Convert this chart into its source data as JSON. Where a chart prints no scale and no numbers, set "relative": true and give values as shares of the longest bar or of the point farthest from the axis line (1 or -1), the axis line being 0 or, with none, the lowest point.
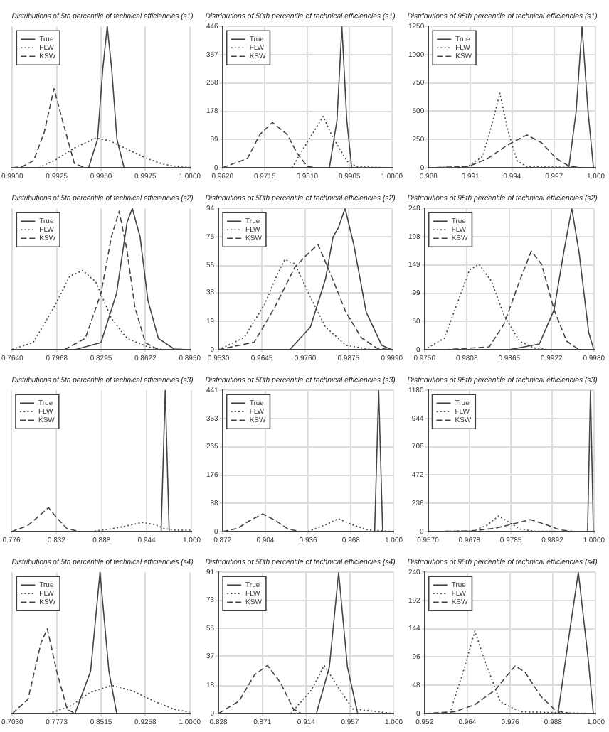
{
  "chart_data": [
    {
      "type": "line",
      "title": "Distributions of 5th percentile of technical efficiencies (s1)",
      "relative": true,
      "tick_labels": "x",
      "xlim": [
        0.99,
        1.0
      ],
      "xticks": [
        {
          "value": 0.99,
          "label": "0.9900"
        },
        {
          "value": 0.9925,
          "label": "0.9925"
        },
        {
          "value": 0.995,
          "label": "0.9950"
        },
        {
          "value": 0.9975,
          "label": "0.9975"
        },
        {
          "value": 1.0,
          "label": "1.0000"
        }
      ],
      "grid": true,
      "legend": "top left",
      "marker": "none",
      "series": [
        {
          "name": "True",
          "color": "#444444",
          "line_style": "solid",
          "x": [
            0.9943,
            0.9948,
            0.9951,
            0.99535,
            0.9956,
            0.9959,
            0.9963
          ],
          "values": [
            0,
            0.2,
            0.7,
            1,
            0.7,
            0.2,
            0
          ]
        },
        {
          "name": "FLW",
          "color": "#444444",
          "line_style": "dotted",
          "x": [
            0.9915,
            0.9925,
            0.9935,
            0.9947,
            0.9955,
            0.9965,
            0.9975,
            0.9985,
            0.9995,
            1.0
          ],
          "values": [
            0,
            0.06,
            0.14,
            0.21,
            0.19,
            0.13,
            0.07,
            0.025,
            0.005,
            0.003
          ]
        },
        {
          "name": "KSW",
          "color": "#444444",
          "line_style": "dashed",
          "x": [
            0.99,
            0.9906,
            0.9912,
            0.9918,
            0.99235,
            0.9929,
            0.9935,
            0.9941
          ],
          "values": [
            0,
            0.01,
            0.05,
            0.25,
            0.56,
            0.3,
            0.03,
            0
          ]
        }
      ]
    },
    {
      "type": "line",
      "title": "Distributions of 50th percentile of technical efficiencies (s1)",
      "xlim": [
        0.962,
        1.0
      ],
      "xticks": [
        {
          "value": 0.962,
          "label": "0.9620"
        },
        {
          "value": 0.9715,
          "label": "0.9715"
        },
        {
          "value": 0.981,
          "label": "0.9810"
        },
        {
          "value": 0.9905,
          "label": "0.9905"
        },
        {
          "value": 1.0,
          "label": "1.0000"
        }
      ],
      "ylim": [
        0,
        446
      ],
      "yticks": [
        0,
        89,
        178,
        268,
        357,
        446
      ],
      "grid": true,
      "legend": "top left",
      "marker": "none",
      "series": [
        {
          "name": "True",
          "color": "#444444",
          "line_style": "solid",
          "x": [
            0.986,
            0.9877,
            0.9888,
            0.9899,
            0.991
          ],
          "values": [
            0,
            150,
            446,
            150,
            0
          ]
        },
        {
          "name": "FLW",
          "color": "#444444",
          "line_style": "dotted",
          "x": [
            0.9776,
            0.981,
            0.9846,
            0.9866,
            0.99,
            0.9922,
            1.0
          ],
          "values": [
            0,
            80,
            162,
            100,
            20,
            3,
            0
          ]
        },
        {
          "name": "KSW",
          "color": "#444444",
          "line_style": "dashed",
          "x": [
            0.962,
            0.9676,
            0.9704,
            0.9732,
            0.9765,
            0.9788,
            0.981,
            0.9827
          ],
          "values": [
            0,
            29,
            105,
            143,
            105,
            45,
            5,
            0
          ]
        }
      ]
    },
    {
      "type": "line",
      "title": "Distributions of 95th percentile of technical efficiencies (s1)",
      "xlim": [
        0.988,
        1.0
      ],
      "xticks": [
        {
          "value": 0.988,
          "label": "0.988"
        },
        {
          "value": 0.991,
          "label": "0.991"
        },
        {
          "value": 0.994,
          "label": "0.994"
        },
        {
          "value": 0.997,
          "label": "0.997"
        },
        {
          "value": 1.0,
          "label": "1.000"
        }
      ],
      "ylim": [
        0,
        1250
      ],
      "yticks": [
        0,
        250,
        500,
        750,
        1000,
        1250
      ],
      "grid": true,
      "legend": "top left",
      "marker": "none",
      "series": [
        {
          "name": "True",
          "color": "#444444",
          "line_style": "solid",
          "x": [
            0.99806,
            0.99859,
            0.99901,
            0.99944,
            0.99983
          ],
          "values": [
            0,
            500,
            1250,
            500,
            0
          ]
        },
        {
          "name": "FLW",
          "color": "#444444",
          "line_style": "dotted",
          "x": [
            0.988,
            0.99082,
            0.99188,
            0.99259,
            0.99312,
            0.99365,
            0.99435,
            0.99506,
            1.0
          ],
          "values": [
            0,
            10,
            100,
            400,
            660,
            350,
            60,
            10,
            0
          ]
        },
        {
          "name": "KSW",
          "color": "#444444",
          "line_style": "dashed",
          "x": [
            0.988,
            0.99082,
            0.99224,
            0.99365,
            0.99506,
            0.99612,
            0.99718,
            0.99806,
            0.99894
          ],
          "values": [
            0,
            10,
            80,
            200,
            290,
            220,
            80,
            15,
            0
          ]
        }
      ]
    },
    {
      "type": "line",
      "title": "Distributions of 5th percentile of technical efficiencies (s2)",
      "relative": true,
      "tick_labels": "x",
      "xlim": [
        0.764,
        0.895
      ],
      "xticks": [
        {
          "value": 0.764,
          "label": "0.7640"
        },
        {
          "value": 0.7968,
          "label": "0.7968"
        },
        {
          "value": 0.8295,
          "label": "0.8295"
        },
        {
          "value": 0.8622,
          "label": "0.8622"
        },
        {
          "value": 0.895,
          "label": "0.8950"
        }
      ],
      "grid": true,
      "legend": "top left",
      "marker": "none",
      "series": [
        {
          "name": "True",
          "color": "#444444",
          "line_style": "solid",
          "x": [
            0.8102,
            0.8295,
            0.841,
            0.8487,
            0.8526,
            0.8583,
            0.8641,
            0.8718,
            0.8834,
            0.895
          ],
          "values": [
            0,
            0.05,
            0.4,
            0.9,
            1,
            0.8,
            0.35,
            0.08,
            0.005,
            0
          ]
        },
        {
          "name": "FLW",
          "color": "#444444",
          "line_style": "dotted",
          "x": [
            0.764,
            0.7794,
            0.7948,
            0.8064,
            0.816,
            0.8256,
            0.8372,
            0.8487,
            0.8641,
            0.8757
          ],
          "values": [
            0.003,
            0.05,
            0.3,
            0.52,
            0.56,
            0.48,
            0.22,
            0.08,
            0.02,
            0
          ]
        },
        {
          "name": "KSW",
          "color": "#444444",
          "line_style": "dashed",
          "x": [
            0.8025,
            0.8179,
            0.8295,
            0.8372,
            0.8429,
            0.8487,
            0.8545,
            0.8622,
            0.8718
          ],
          "values": [
            0,
            0.08,
            0.4,
            0.8,
            0.98,
            0.7,
            0.3,
            0.05,
            0
          ]
        }
      ]
    },
    {
      "type": "line",
      "title": "Distributions of 50th percentile of technical efficiencies (s2)",
      "xlim": [
        0.953,
        0.999
      ],
      "xticks": [
        {
          "value": 0.953,
          "label": "0.9530"
        },
        {
          "value": 0.9645,
          "label": "0.9645"
        },
        {
          "value": 0.976,
          "label": "0.9760"
        },
        {
          "value": 0.9875,
          "label": "0.9875"
        },
        {
          "value": 0.999,
          "label": "0.9990"
        }
      ],
      "ylim": [
        0,
        94
      ],
      "yticks": [
        0,
        19,
        38,
        56,
        75,
        94
      ],
      "grid": true,
      "legend": "top left",
      "marker": "none",
      "series": [
        {
          "name": "True",
          "color": "#444444",
          "line_style": "solid",
          "x": [
            0.9719,
            0.9774,
            0.9814,
            0.9834,
            0.9848,
            0.9866,
            0.9889,
            0.9922,
            0.9963,
            0.999
          ],
          "values": [
            0,
            15,
            47,
            75,
            81,
            94,
            70,
            25,
            3,
            0
          ]
        },
        {
          "name": "FLW",
          "color": "#444444",
          "line_style": "dotted",
          "x": [
            0.953,
            0.9598,
            0.9652,
            0.9686,
            0.9706,
            0.9733,
            0.9774,
            0.9814,
            0.9868,
            0.9936
          ],
          "values": [
            0,
            8,
            30,
            50,
            60,
            57,
            35,
            15,
            3,
            0
          ]
        },
        {
          "name": "KSW",
          "color": "#444444",
          "line_style": "dashed",
          "x": [
            0.953,
            0.9625,
            0.9679,
            0.9733,
            0.976,
            0.9794,
            0.9828,
            0.9868,
            0.9909,
            0.995,
            0.999
          ],
          "values": [
            0,
            5,
            28,
            55,
            62,
            70,
            50,
            25,
            8,
            1,
            0
          ]
        }
      ]
    },
    {
      "type": "line",
      "title": "Distributions of 95th percentile of technical efficiencies (s2)",
      "xlim": [
        0.975,
        0.998
      ],
      "xticks": [
        {
          "value": 0.975,
          "label": "0.9750"
        },
        {
          "value": 0.98075,
          "label": "0.9808"
        },
        {
          "value": 0.9865,
          "label": "0.9865"
        },
        {
          "value": 0.99225,
          "label": "0.9922"
        },
        {
          "value": 0.998,
          "label": "0.9980"
        }
      ],
      "ylim": [
        0,
        248
      ],
      "yticks": [
        0,
        50,
        99,
        149,
        198,
        248
      ],
      "grid": true,
      "legend": "top left",
      "marker": "none",
      "series": [
        {
          "name": "True",
          "color": "#444444",
          "line_style": "solid",
          "x": [
            0.9865,
            0.9906,
            0.9926,
            0.9939,
            0.995,
            0.996,
            0.9973,
            0.998
          ],
          "values": [
            0,
            10,
            70,
            170,
            248,
            170,
            30,
            0
          ]
        },
        {
          "name": "FLW",
          "color": "#444444",
          "line_style": "dotted",
          "x": [
            0.975,
            0.9777,
            0.9797,
            0.9811,
            0.9824,
            0.9841,
            0.9858,
            0.9879,
            0.9899,
            0.9919
          ],
          "values": [
            0,
            20,
            90,
            140,
            150,
            120,
            60,
            15,
            3,
            0
          ]
        },
        {
          "name": "KSW",
          "color": "#444444",
          "line_style": "dashed",
          "x": [
            0.9777,
            0.9838,
            0.9858,
            0.9879,
            0.9895,
            0.9909,
            0.9926,
            0.9943,
            0.996
          ],
          "values": [
            0,
            5,
            45,
            120,
            173,
            150,
            70,
            15,
            0
          ]
        }
      ]
    },
    {
      "type": "line",
      "title": "Distributions of 5th percentile of technical efficiencies (s3)",
      "relative": true,
      "tick_labels": "x",
      "xlim": [
        0.776,
        1.0
      ],
      "xticks": [
        {
          "value": 0.776,
          "label": "0.776"
        },
        {
          "value": 0.832,
          "label": "0.832"
        },
        {
          "value": 0.888,
          "label": "0.888"
        },
        {
          "value": 0.944,
          "label": "0.944"
        },
        {
          "value": 1.0,
          "label": "1.000"
        }
      ],
      "grid": true,
      "legend": "top left",
      "marker": "none",
      "series": [
        {
          "name": "True",
          "color": "#444444",
          "line_style": "solid",
          "x": [
            0.962,
            0.9671,
            0.972
          ],
          "values": [
            0,
            1,
            0
          ]
        },
        {
          "name": "FLW",
          "color": "#444444",
          "line_style": "dotted",
          "x": [
            0.8749,
            0.9012,
            0.9276,
            0.9375,
            0.954,
            0.9671,
            0.9803,
            1.0
          ],
          "values": [
            0,
            0.02,
            0.05,
            0.065,
            0.05,
            0.02,
            0.01,
            0.01
          ]
        },
        {
          "name": "KSW",
          "color": "#444444",
          "line_style": "dashed",
          "x": [
            0.776,
            0.7958,
            0.8122,
            0.8221,
            0.832,
            0.8452,
            0.8617
          ],
          "values": [
            0,
            0.04,
            0.12,
            0.17,
            0.1,
            0.02,
            0
          ]
        }
      ]
    },
    {
      "type": "line",
      "title": "Distributions of 50th percentile of technical efficiencies (s3)",
      "xlim": [
        0.872,
        1.0
      ],
      "xticks": [
        {
          "value": 0.872,
          "label": "0.872"
        },
        {
          "value": 0.904,
          "label": "0.904"
        },
        {
          "value": 0.936,
          "label": "0.936"
        },
        {
          "value": 0.968,
          "label": "0.968"
        },
        {
          "value": 1.0,
          "label": "1.000"
        }
      ],
      "ylim": [
        0,
        441
      ],
      "yticks": [
        0,
        88,
        176,
        265,
        353,
        441
      ],
      "grid": true,
      "legend": "top left",
      "marker": "none",
      "series": [
        {
          "name": "True",
          "color": "#444444",
          "line_style": "solid",
          "x": [
            0.9857,
            0.9887,
            0.9917
          ],
          "values": [
            0,
            441,
            0
          ]
        },
        {
          "name": "FLW",
          "color": "#444444",
          "line_style": "dotted",
          "x": [
            0.936,
            0.9511,
            0.9586,
            0.9699,
            0.9812,
            1.0
          ],
          "values": [
            0,
            25,
            40,
            20,
            5,
            0
          ]
        },
        {
          "name": "KSW",
          "color": "#444444",
          "line_style": "dashed",
          "x": [
            0.872,
            0.8833,
            0.8927,
            0.9021,
            0.9115,
            0.9209,
            0.9304
          ],
          "values": [
            0,
            10,
            35,
            55,
            35,
            8,
            0
          ]
        }
      ]
    },
    {
      "type": "line",
      "title": "Distributions of 95th percentile of technical efficiencies (s3)",
      "xlim": [
        0.957,
        1.0
      ],
      "xticks": [
        {
          "value": 0.957,
          "label": "0.9570"
        },
        {
          "value": 0.96775,
          "label": "0.9678"
        },
        {
          "value": 0.9785,
          "label": "0.9785"
        },
        {
          "value": 0.98925,
          "label": "0.9892"
        },
        {
          "value": 1.0,
          "label": "1.0000"
        }
      ],
      "ylim": [
        0,
        1180
      ],
      "yticks": [
        0,
        236,
        472,
        708,
        944,
        1180
      ],
      "grid": true,
      "legend": "top left",
      "marker": "none",
      "series": [
        {
          "name": "True",
          "color": "#444444",
          "line_style": "solid",
          "x": [
            0.99837,
            0.99912,
            0.99988
          ],
          "values": [
            0,
            1180,
            0
          ]
        },
        {
          "name": "FLW",
          "color": "#444444",
          "line_style": "dotted",
          "x": [
            0.957,
            0.9684,
            0.9722,
            0.9753,
            0.9779,
            0.981,
            0.9848,
            1.0
          ],
          "values": [
            0,
            5,
            50,
            130,
            80,
            20,
            3,
            0
          ]
        },
        {
          "name": "KSW",
          "color": "#444444",
          "line_style": "dashed",
          "x": [
            0.957,
            0.9684,
            0.9747,
            0.9798,
            0.9836,
            0.9874,
            0.9912,
            0.995
          ],
          "values": [
            0,
            5,
            30,
            70,
            100,
            60,
            15,
            0
          ]
        }
      ]
    },
    {
      "type": "line",
      "title": "Distributions of 5th percentile of technical efficiencies (s4)",
      "relative": true,
      "tick_labels": "x",
      "xlim": [
        0.703,
        1.0
      ],
      "xticks": [
        {
          "value": 0.703,
          "label": "0.7030"
        },
        {
          "value": 0.77725,
          "label": "0.7773"
        },
        {
          "value": 0.8515,
          "label": "0.8515"
        },
        {
          "value": 0.92575,
          "label": "0.9258"
        },
        {
          "value": 1.0,
          "label": "1.0000"
        }
      ],
      "grid": true,
      "legend": "top left",
      "marker": "none",
      "series": [
        {
          "name": "True",
          "color": "#444444",
          "line_style": "solid",
          "x": [
            0.8079,
            0.8341,
            0.8498,
            0.8647,
            0.8778
          ],
          "values": [
            0,
            0.3,
            1,
            0.3,
            0
          ]
        },
        {
          "name": "FLW",
          "color": "#444444",
          "line_style": "dotted",
          "x": [
            0.7642,
            0.7991,
            0.8341,
            0.869,
            0.904,
            0.939,
            0.974,
            1.0
          ],
          "values": [
            0,
            0.05,
            0.15,
            0.2,
            0.16,
            0.09,
            0.03,
            0.01
          ]
        },
        {
          "name": "KSW",
          "color": "#444444",
          "line_style": "dashed",
          "x": [
            0.703,
            0.7292,
            0.7511,
            0.7616,
            0.7773,
            0.7948,
            0.8079
          ],
          "values": [
            0,
            0.1,
            0.5,
            0.6,
            0.3,
            0.03,
            0
          ]
        }
      ]
    },
    {
      "type": "line",
      "title": "Distributions of 50th percentile of technical efficiencies (s4)",
      "xlim": [
        0.828,
        1.0
      ],
      "xticks": [
        {
          "value": 0.828,
          "label": "0.828"
        },
        {
          "value": 0.871,
          "label": "0.871"
        },
        {
          "value": 0.914,
          "label": "0.914"
        },
        {
          "value": 0.957,
          "label": "0.957"
        },
        {
          "value": 1.0,
          "label": "1.000"
        }
      ],
      "ylim": [
        0,
        91
      ],
      "yticks": [
        0,
        18,
        37,
        55,
        73,
        91
      ],
      "grid": true,
      "legend": "top left",
      "marker": "none",
      "series": [
        {
          "name": "True",
          "color": "#444444",
          "line_style": "solid",
          "x": [
            0.9241,
            0.9368,
            0.9459,
            0.9545,
            0.9646
          ],
          "values": [
            0,
            30,
            91,
            30,
            0
          ]
        },
        {
          "name": "FLW",
          "color": "#444444",
          "line_style": "dotted",
          "x": [
            0.8988,
            0.9191,
            0.9317,
            0.9444,
            0.9596,
            1.0
          ],
          "values": [
            0,
            15,
            31,
            18,
            3,
            0
          ]
        },
        {
          "name": "KSW",
          "color": "#444444",
          "line_style": "dashed",
          "x": [
            0.828,
            0.8482,
            0.8634,
            0.8761,
            0.8887,
            0.9014,
            0.909
          ],
          "values": [
            0,
            8,
            25,
            31,
            20,
            3,
            0
          ]
        }
      ]
    },
    {
      "type": "line",
      "title": "Distributions of 95th percentile of technical efficiencies (s4)",
      "xlim": [
        0.952,
        1.0
      ],
      "xticks": [
        {
          "value": 0.952,
          "label": "0.952"
        },
        {
          "value": 0.964,
          "label": "0.964"
        },
        {
          "value": 0.976,
          "label": "0.976"
        },
        {
          "value": 0.988,
          "label": "0.988"
        },
        {
          "value": 1.0,
          "label": "1.000"
        }
      ],
      "ylim": [
        0,
        240
      ],
      "yticks": [
        0,
        48,
        96,
        144,
        192,
        240
      ],
      "grid": true,
      "legend": "top left",
      "marker": "none",
      "series": [
        {
          "name": "True",
          "color": "#444444",
          "line_style": "solid",
          "x": [
            0.9894,
            0.9922,
            0.9951,
            0.9979,
            0.9993
          ],
          "values": [
            0,
            120,
            240,
            90,
            0
          ]
        },
        {
          "name": "FLW",
          "color": "#444444",
          "line_style": "dotted",
          "x": [
            0.9591,
            0.9633,
            0.9661,
            0.9689,
            0.9732,
            0.9788,
            1.0
          ],
          "values": [
            0,
            80,
            140,
            90,
            20,
            3,
            0
          ]
        },
        {
          "name": "KSW",
          "color": "#444444",
          "line_style": "dashed",
          "x": [
            0.952,
            0.9605,
            0.9661,
            0.9718,
            0.9774,
            0.9802,
            0.9845,
            0.9887,
            0.9929
          ],
          "values": [
            0,
            3,
            15,
            40,
            81,
            70,
            30,
            5,
            0
          ]
        }
      ]
    }
  ]
}
